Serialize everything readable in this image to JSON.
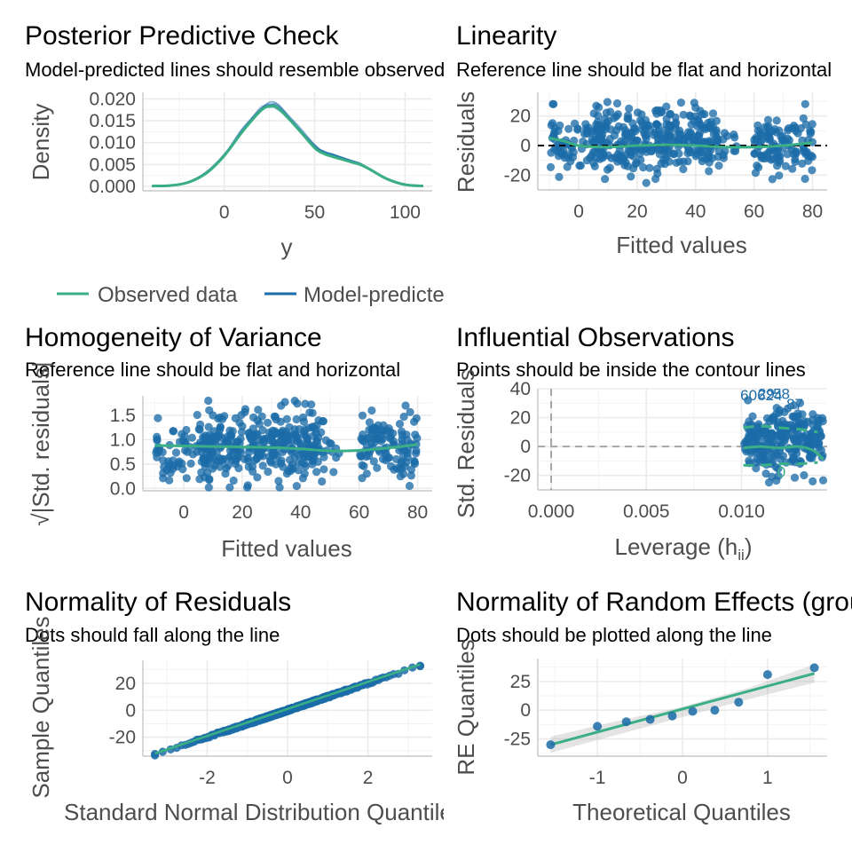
{
  "colors": {
    "green": "#3aaf85",
    "blue": "#1b6ca8",
    "point": "#1b6ca8",
    "ci": "#b3b3b3",
    "refline": "#000000",
    "dashed_grey": "#a6a6a6",
    "label": "#1b6ca8"
  },
  "chart_data": [
    {
      "id": "ppc",
      "type": "line",
      "title": "Posterior Predictive Check",
      "subtitle": "Model-predicted lines should resemble observed data line",
      "xlabel": "y",
      "ylabel": "Density",
      "xlim": [
        -45,
        115
      ],
      "ylim": [
        -0.001,
        0.0215
      ],
      "xticks": [
        0,
        50,
        100
      ],
      "yticks": [
        0.0,
        0.005,
        0.01,
        0.015,
        0.02
      ],
      "ytick_labels": [
        "0.000",
        "0.005",
        "0.010",
        "0.015",
        "0.020"
      ],
      "legend": {
        "position": "bottom",
        "entries": [
          "Observed data",
          "Model-predicted data"
        ]
      },
      "series": [
        {
          "name": "Observed data",
          "x": [
            -40,
            -30,
            -20,
            -10,
            0,
            10,
            20,
            25,
            30,
            40,
            50,
            55,
            60,
            70,
            75,
            80,
            90,
            100,
            110
          ],
          "y": [
            0.0001,
            0.0002,
            0.0009,
            0.003,
            0.007,
            0.0125,
            0.0172,
            0.0183,
            0.0178,
            0.0135,
            0.0088,
            0.0075,
            0.0068,
            0.0056,
            0.005,
            0.004,
            0.0017,
            0.0004,
            0.0001
          ]
        },
        {
          "name": "Model-predicted data",
          "x": [
            -40,
            -30,
            -20,
            -10,
            0,
            10,
            20,
            25,
            30,
            40,
            50,
            55,
            60,
            70,
            75,
            80,
            90,
            100,
            110
          ],
          "y": [
            0.0001,
            0.0002,
            0.001,
            0.0032,
            0.0072,
            0.0128,
            0.0176,
            0.0187,
            0.0181,
            0.0138,
            0.0092,
            0.0079,
            0.0072,
            0.0059,
            0.0052,
            0.0041,
            0.0018,
            0.0005,
            0.0001
          ]
        }
      ]
    },
    {
      "id": "linearity",
      "type": "scatter",
      "title": "Linearity",
      "subtitle": "Reference line should be flat and horizontal",
      "xlabel": "Fitted values",
      "ylabel": "Residuals",
      "xlim": [
        -14,
        85
      ],
      "ylim": [
        -30,
        36
      ],
      "xticks": [
        0,
        20,
        40,
        60,
        80
      ],
      "yticks": [
        -20,
        0,
        20
      ],
      "reference_y": 0,
      "clusters": [
        {
          "xmin": -10,
          "xmax": 10,
          "ymin": -22,
          "ymax": 28,
          "n": 70
        },
        {
          "xmin": 5,
          "xmax": 48,
          "ymin": -26,
          "ymax": 34,
          "n": 320
        },
        {
          "xmin": 45,
          "xmax": 54,
          "ymin": -15,
          "ymax": 15,
          "n": 12
        },
        {
          "xmin": 60,
          "xmax": 80,
          "ymin": -26,
          "ymax": 28,
          "n": 110
        }
      ],
      "smooth": {
        "x": [
          -10,
          -5,
          0,
          10,
          20,
          30,
          40,
          50,
          60,
          70,
          80
        ],
        "y": [
          5,
          3,
          0,
          -1,
          0,
          0.5,
          0,
          -1,
          -1,
          0,
          2
        ]
      }
    },
    {
      "id": "homogeneity",
      "type": "scatter",
      "title": "Homogeneity of Variance",
      "subtitle": "Reference line should be flat and horizontal",
      "xlabel": "Fitted values",
      "ylabel": "√|Std. residuals|",
      "xlim": [
        -14,
        85
      ],
      "ylim": [
        -0.05,
        1.9
      ],
      "xticks": [
        0,
        20,
        40,
        60,
        80
      ],
      "yticks": [
        0.0,
        0.5,
        1.0,
        1.5
      ],
      "ytick_labels": [
        "0.0",
        "0.5",
        "1.0",
        "1.5"
      ],
      "clusters": [
        {
          "xmin": -10,
          "xmax": 10,
          "ymin": 0.05,
          "ymax": 1.6,
          "n": 70
        },
        {
          "xmin": 5,
          "xmax": 48,
          "ymin": 0.02,
          "ymax": 1.8,
          "n": 320
        },
        {
          "xmin": 45,
          "xmax": 54,
          "ymin": 0.3,
          "ymax": 1.2,
          "n": 12
        },
        {
          "xmin": 60,
          "xmax": 80,
          "ymin": 0.05,
          "ymax": 1.7,
          "n": 110
        }
      ],
      "smooth": {
        "x": [
          -10,
          0,
          10,
          20,
          30,
          40,
          50,
          60,
          70,
          80
        ],
        "y": [
          0.88,
          0.87,
          0.86,
          0.85,
          0.84,
          0.81,
          0.77,
          0.78,
          0.83,
          0.9
        ]
      }
    },
    {
      "id": "influence",
      "type": "scatter",
      "title": "Influential Observations",
      "subtitle": "Points should be inside the contour lines",
      "xlabel": "Leverage (h",
      "xlabel_sub": "ii",
      "xlabel_end": ")",
      "ylabel": "Std. Residuals",
      "xlim": [
        -0.0007,
        0.0145
      ],
      "ylim": [
        -30,
        40
      ],
      "xticks": [
        0.0,
        0.005,
        0.01
      ],
      "xtick_labels": [
        "0.000",
        "0.005",
        "0.010"
      ],
      "yticks": [
        -20,
        0,
        20,
        40
      ],
      "cluster": {
        "xmin": 0.0101,
        "xmax": 0.0143,
        "ymin": -26,
        "ymax": 32,
        "n": 260
      },
      "smooth": {
        "x": [
          0.0101,
          0.011,
          0.012,
          0.013,
          0.0138,
          0.0143
        ],
        "y": [
          -1,
          0,
          -1,
          0,
          -3,
          -9
        ]
      },
      "contour_upper": {
        "x": [
          0.0101,
          0.011,
          0.012,
          0.013,
          0.014
        ],
        "y": [
          13,
          14,
          13,
          12,
          10
        ]
      },
      "contour_lower": {
        "x": [
          0.0101,
          0.011,
          0.012,
          0.013,
          0.014
        ],
        "y": [
          -13,
          -13,
          -12,
          -12,
          -11
        ]
      },
      "point_labels": [
        {
          "text": "606",
          "x": 0.0106,
          "y": 32
        },
        {
          "text": "29",
          "x": 0.0113,
          "y": 33
        },
        {
          "text": "24",
          "x": 0.0117,
          "y": 32
        },
        {
          "text": "58",
          "x": 0.0121,
          "y": 33
        },
        {
          "text": "87",
          "x": 0.0128,
          "y": 26
        },
        {
          "text": "0",
          "x": 0.0121,
          "y": -21
        }
      ]
    },
    {
      "id": "normality_res",
      "type": "scatter",
      "title": "Normality of Residuals",
      "subtitle": "Dots should fall along the line",
      "xlabel": "Standard Normal Distribution Quantiles",
      "ylabel": "Sample Quantiles",
      "xlim": [
        -3.6,
        3.6
      ],
      "ylim": [
        -34,
        37
      ],
      "xticks": [
        -2,
        0,
        2
      ],
      "yticks": [
        -20,
        0,
        20
      ],
      "ref_line": {
        "x": [
          -3.3,
          3.3
        ],
        "y": [
          -32,
          34
        ]
      },
      "qq": {
        "xmin": -3.3,
        "xmax": 3.3,
        "slope": 10,
        "n": 500
      }
    },
    {
      "id": "normality_re",
      "type": "scatter",
      "title": "Normality of Random Effects (group)",
      "subtitle": "Dots should be plotted along the line",
      "xlabel": "Theoretical Quantiles",
      "ylabel": "RE Quantiles",
      "xlim": [
        -1.7,
        1.7
      ],
      "ylim": [
        -40,
        45
      ],
      "xticks": [
        -1,
        0,
        1
      ],
      "yticks": [
        -25,
        0,
        25
      ],
      "points": {
        "x": [
          -1.55,
          -1.0,
          -0.66,
          -0.38,
          -0.12,
          0.12,
          0.38,
          0.66,
          1.0,
          1.55
        ],
        "y": [
          -30,
          -14,
          -10,
          -8,
          -5,
          -1,
          0,
          7,
          31,
          37
        ]
      },
      "ref_line": {
        "x": [
          -1.55,
          1.55
        ],
        "y": [
          -30,
          32
        ]
      },
      "band": {
        "x": [
          -1.55,
          -0.8,
          0,
          0.8,
          1.55
        ],
        "lower": [
          -37,
          -22,
          -6,
          10,
          24
        ],
        "upper": [
          -23,
          -10,
          3,
          20,
          40
        ]
      }
    }
  ]
}
